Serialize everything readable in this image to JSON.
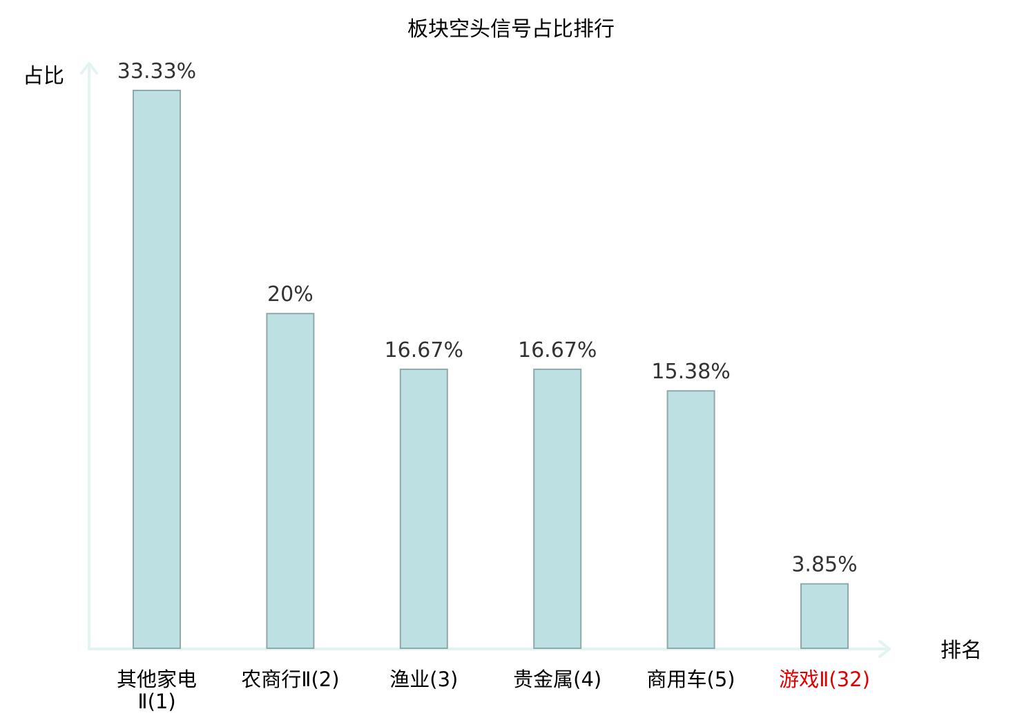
{
  "chart_data": {
    "type": "bar",
    "title": "板块空头信号占比排行",
    "ylabel": "占比",
    "xlabel": "排名",
    "categories": [
      [
        "其他家电",
        "Ⅱ(1)"
      ],
      [
        "农商行Ⅱ(2)"
      ],
      [
        "渔业(3)"
      ],
      [
        "贵金属(4)"
      ],
      [
        "商用车(5)"
      ],
      [
        "游戏Ⅱ(32)"
      ]
    ],
    "values": [
      33.33,
      20,
      16.67,
      16.67,
      15.38,
      3.85
    ],
    "value_labels": [
      "33.33%",
      "20%",
      "16.67%",
      "16.67%",
      "15.38%",
      "3.85%"
    ],
    "highlight_index": 5,
    "ylim": [
      0,
      35
    ],
    "grid": false,
    "legend": "none",
    "colors": {
      "bar_fill": "#bde0e2",
      "bar_stroke": "#8fa9ab",
      "axis": "#e2f3f1",
      "label_default": "#000000",
      "label_highlight": "#e00000"
    }
  }
}
